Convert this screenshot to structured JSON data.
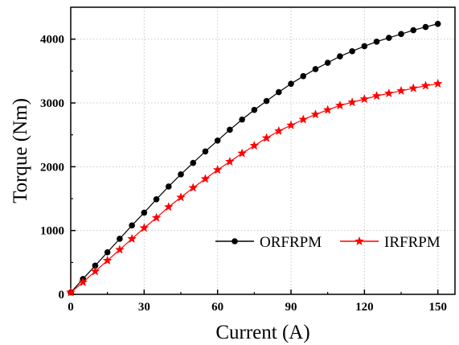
{
  "chart_data": {
    "type": "line",
    "xlabel": "Current (A)",
    "ylabel": "Torque (Nm)",
    "xlim": [
      0,
      157
    ],
    "ylim": [
      0,
      4500
    ],
    "xticks": [
      0,
      30,
      60,
      90,
      120,
      150
    ],
    "yticks": [
      0,
      1000,
      2000,
      3000,
      4000
    ],
    "grid": true,
    "legend_position": "lower-right",
    "x": [
      0,
      5,
      10,
      15,
      20,
      25,
      30,
      35,
      40,
      45,
      50,
      55,
      60,
      65,
      70,
      75,
      80,
      85,
      90,
      95,
      100,
      105,
      110,
      115,
      120,
      125,
      130,
      135,
      140,
      145,
      150
    ],
    "series": [
      {
        "name": "ORFRPM",
        "color": "#000000",
        "marker": "circle",
        "values": [
          30,
          240,
          450,
          660,
          870,
          1080,
          1280,
          1490,
          1690,
          1880,
          2060,
          2240,
          2410,
          2580,
          2740,
          2890,
          3030,
          3170,
          3300,
          3420,
          3530,
          3630,
          3730,
          3810,
          3890,
          3960,
          4020,
          4080,
          4140,
          4190,
          4240
        ]
      },
      {
        "name": "IRFRPM",
        "color": "#ff0000",
        "marker": "star",
        "values": [
          30,
          190,
          360,
          530,
          700,
          870,
          1040,
          1200,
          1370,
          1520,
          1670,
          1810,
          1950,
          2080,
          2210,
          2330,
          2450,
          2560,
          2650,
          2740,
          2820,
          2890,
          2960,
          3010,
          3060,
          3110,
          3150,
          3190,
          3230,
          3270,
          3300
        ]
      }
    ]
  }
}
